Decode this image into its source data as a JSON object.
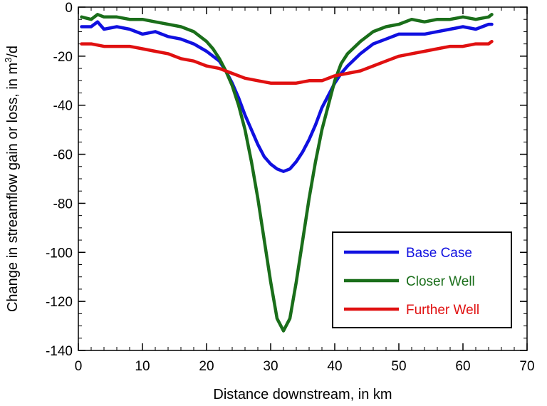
{
  "chart_data": {
    "type": "line",
    "title": "",
    "xlabel": "Distance downstream, in km",
    "ylabel_prefix": "Change in streamflow gain or loss, in m",
    "ylabel_sup": "3",
    "ylabel_suffix": "/d",
    "xlim": [
      0,
      70
    ],
    "ylim": [
      -140,
      0
    ],
    "x_major_ticks": [
      0,
      10,
      20,
      30,
      40,
      50,
      60,
      70
    ],
    "x_minor_step": 2,
    "y_major_ticks": [
      0,
      -20,
      -40,
      -60,
      -80,
      -100,
      -120,
      -140
    ],
    "y_minor_step": 5,
    "grid": false,
    "legend_position": "bottom-right",
    "series": [
      {
        "name": "Base Case",
        "color": "#1010e0",
        "x": [
          0.5,
          2,
          3,
          4,
          6,
          8,
          10,
          12,
          14,
          16,
          18,
          20,
          22,
          23,
          24,
          25,
          26,
          27,
          28,
          29,
          30,
          31,
          32,
          33,
          34,
          35,
          36,
          37,
          38,
          39,
          40,
          41,
          42,
          44,
          46,
          48,
          50,
          52,
          54,
          56,
          58,
          60,
          62,
          64,
          64.5
        ],
        "y": [
          -8,
          -8,
          -6,
          -9,
          -8,
          -9,
          -11,
          -10,
          -12,
          -13,
          -15,
          -18,
          -22,
          -26,
          -31,
          -37,
          -44,
          -50,
          -56,
          -61,
          -64,
          -66,
          -67,
          -66,
          -63,
          -59,
          -54,
          -48,
          -41,
          -36,
          -31,
          -27,
          -24,
          -19,
          -15,
          -13,
          -11,
          -11,
          -11,
          -10,
          -9,
          -8,
          -9,
          -7,
          -7
        ]
      },
      {
        "name": "Closer Well",
        "color": "#1a6e1a",
        "x": [
          0.5,
          2,
          3,
          4,
          6,
          8,
          10,
          12,
          14,
          16,
          18,
          20,
          21,
          22,
          23,
          24,
          25,
          26,
          27,
          28,
          29,
          30,
          31,
          32,
          33,
          34,
          35,
          36,
          37,
          38,
          39,
          40,
          41,
          42,
          44,
          46,
          48,
          50,
          52,
          54,
          56,
          58,
          60,
          62,
          64,
          64.5
        ],
        "y": [
          -4,
          -5,
          -3,
          -4,
          -4,
          -5,
          -5,
          -6,
          -7,
          -8,
          -10,
          -14,
          -17,
          -21,
          -26,
          -32,
          -40,
          -50,
          -63,
          -78,
          -95,
          -112,
          -127,
          -132,
          -127,
          -112,
          -95,
          -78,
          -63,
          -50,
          -40,
          -30,
          -23,
          -19,
          -14,
          -10,
          -8,
          -7,
          -5,
          -6,
          -5,
          -5,
          -4,
          -5,
          -4,
          -3
        ]
      },
      {
        "name": "Further Well",
        "color": "#e01010",
        "x": [
          0.5,
          2,
          4,
          6,
          8,
          10,
          12,
          14,
          16,
          18,
          20,
          22,
          24,
          26,
          28,
          30,
          32,
          34,
          36,
          38,
          40,
          42,
          44,
          46,
          48,
          50,
          52,
          54,
          56,
          58,
          60,
          62,
          64,
          64.5
        ],
        "y": [
          -15,
          -15,
          -16,
          -16,
          -16,
          -17,
          -18,
          -19,
          -21,
          -22,
          -24,
          -25,
          -27,
          -29,
          -30,
          -31,
          -31,
          -31,
          -30,
          -30,
          -28,
          -27,
          -26,
          -24,
          -22,
          -20,
          -19,
          -18,
          -17,
          -16,
          -16,
          -15,
          -15,
          -14
        ]
      }
    ]
  }
}
